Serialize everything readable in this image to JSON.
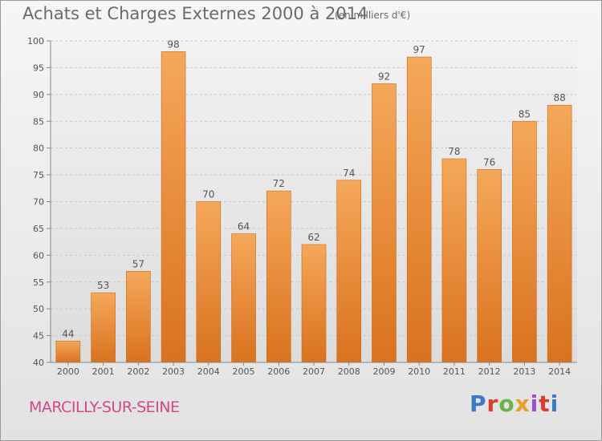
{
  "title": "Achats et Charges Externes 2000 à 2014",
  "unit": "(en milliers d'€)",
  "commune": "MARCILLY-SUR-SEINE",
  "logo": {
    "text": "Proxiti",
    "colors": [
      "#3a78c8",
      "#e23a2a",
      "#6db33f",
      "#e8a020",
      "#9b4dca",
      "#e23a2a",
      "#3a78c8"
    ]
  },
  "colors": {
    "bar_light": "#f5a85a",
    "bar_dark": "#d9721e",
    "bar_edge": "#c86a1c",
    "grid": "#c8c8c8",
    "text": "#555555"
  },
  "chart_data": {
    "type": "bar",
    "categories": [
      "2000",
      "2001",
      "2002",
      "2003",
      "2004",
      "2005",
      "2006",
      "2007",
      "2008",
      "2009",
      "2010",
      "2011",
      "2012",
      "2013",
      "2014"
    ],
    "values": [
      44,
      53,
      57,
      98,
      70,
      64,
      72,
      62,
      74,
      92,
      97,
      78,
      76,
      85,
      88
    ],
    "ylim": [
      40,
      100
    ],
    "yticks": [
      40,
      45,
      50,
      55,
      60,
      65,
      70,
      75,
      80,
      85,
      90,
      95,
      100
    ],
    "grid": true,
    "xlabel": "",
    "ylabel": ""
  }
}
